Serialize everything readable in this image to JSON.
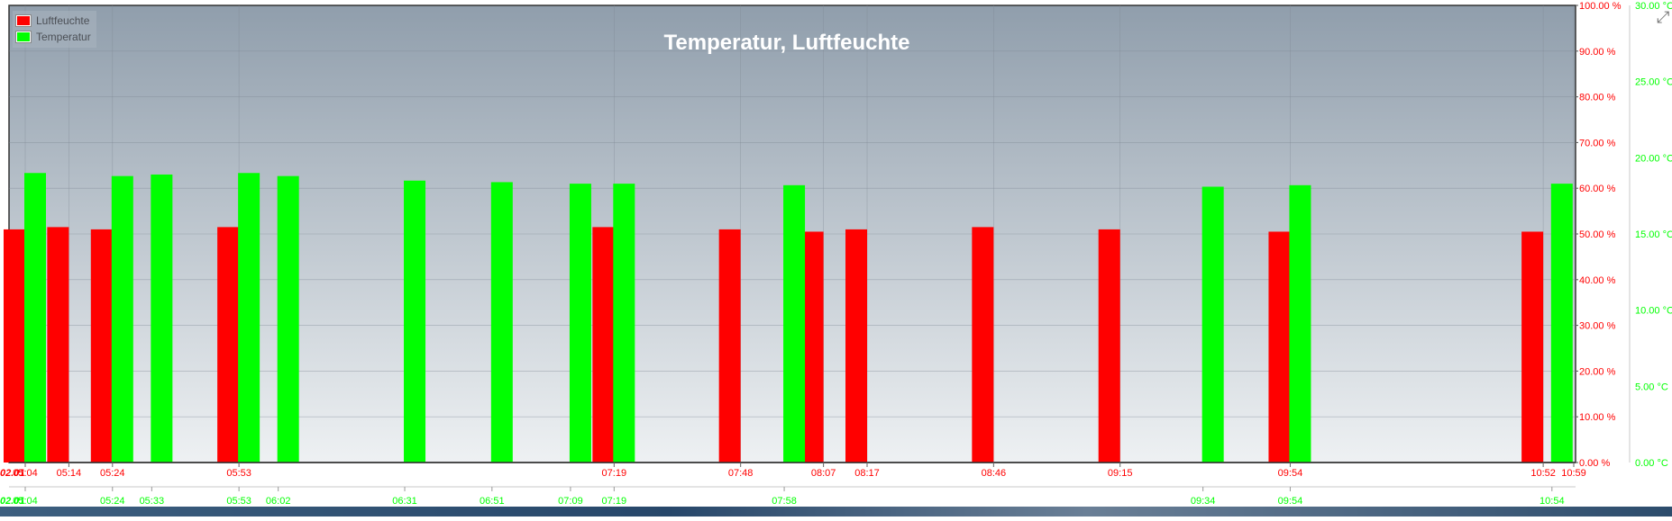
{
  "chart_data": {
    "type": "bar",
    "title": "Temperatur, Luftfeuchte",
    "legend_position": "top-left",
    "grid": true,
    "series": [
      {
        "name": "Luftfeuchte",
        "color": "#ff0000",
        "axis": "left-of-right",
        "x": [
          "05:04",
          "05:14",
          "05:24",
          "05:53",
          "07:19",
          "07:48",
          "08:07",
          "08:17",
          "08:46",
          "09:15",
          "09:54",
          "10:52"
        ],
        "values": [
          51,
          51.5,
          51,
          51.5,
          51.5,
          51,
          50.5,
          51,
          51.5,
          51,
          50.5,
          50.5
        ]
      },
      {
        "name": "Temperatur",
        "color": "#00ff00",
        "axis": "far-right",
        "x": [
          "05:04",
          "05:24",
          "05:33",
          "05:53",
          "06:02",
          "06:31",
          "06:51",
          "07:09",
          "07:19",
          "07:58",
          "09:34",
          "09:54",
          "10:54"
        ],
        "values": [
          19,
          18.8,
          18.9,
          19,
          18.8,
          18.5,
          18.4,
          18.3,
          18.3,
          18.2,
          18.1,
          18.2,
          18.3
        ]
      }
    ],
    "y_axis_humidity": {
      "ylim": [
        0,
        100
      ],
      "ticks": [
        "0.00 %",
        "10.00 %",
        "20.00 %",
        "30.00 %",
        "40.00 %",
        "50.00 %",
        "60.00 %",
        "70.00 %",
        "80.00 %",
        "90.00 %",
        "100.00 %"
      ],
      "color": "#ff0000"
    },
    "y_axis_temperature": {
      "ylim": [
        0,
        30
      ],
      "ticks": [
        "0.00 °C",
        "5.00 °C",
        "10.00 °C",
        "15.00 °C",
        "20.00 °C",
        "25.00 °C",
        "30.00 °C"
      ],
      "color": "#00ff00"
    },
    "x_axis_red": {
      "start_label": "02.01",
      "labels": [
        "05:04",
        "05:14",
        "05:24",
        "05:53",
        "07:19",
        "07:48",
        "08:07",
        "08:17",
        "08:46",
        "09:15",
        "09:54",
        "10:52",
        "10:59"
      ]
    },
    "x_axis_green": {
      "start_label": "02.01",
      "labels": [
        "05:04",
        "05:24",
        "05:33",
        "05:53",
        "06:02",
        "06:31",
        "06:51",
        "07:09",
        "07:19",
        "07:58",
        "09:34",
        "09:54",
        "10:54"
      ]
    },
    "colors": {
      "background_top": "#909eac",
      "background_bottom": "#eef1f3",
      "grid": "#7f8994",
      "humidity": "#ff0000",
      "temperature": "#00ff00"
    }
  }
}
